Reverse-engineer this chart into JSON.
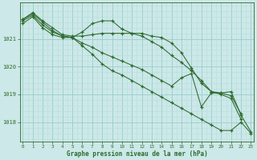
{
  "background_color": "#cce8e8",
  "grid_color_major": "#99cccc",
  "grid_color_minor": "#b8dddd",
  "line_color": "#2d6a2d",
  "marker_color": "#2d6a2d",
  "xlabel": "Graphe pression niveau de la mer (hPa)",
  "xlabel_color": "#2d6a2d",
  "tick_color": "#2d6a2d",
  "ylim": [
    1017.3,
    1022.3
  ],
  "yticks": [
    1018,
    1019,
    1020,
    1021
  ],
  "xticks": [
    0,
    1,
    2,
    3,
    4,
    5,
    6,
    7,
    8,
    9,
    10,
    11,
    12,
    13,
    14,
    15,
    16,
    17,
    18,
    19,
    20,
    21,
    22,
    23
  ],
  "series": [
    [
      1021.7,
      1021.95,
      1021.65,
      1021.4,
      1021.15,
      1021.1,
      1021.1,
      1021.15,
      1021.2,
      1021.2,
      1021.2,
      1021.2,
      1021.2,
      1021.1,
      1021.05,
      1020.85,
      1020.5,
      1019.95,
      1019.4,
      1019.1,
      1019.05,
      1019.1,
      1018.25,
      1017.65
    ],
    [
      1021.7,
      1021.9,
      1021.6,
      1021.3,
      1021.1,
      1021.05,
      1021.25,
      1021.55,
      1021.65,
      1021.65,
      1021.35,
      1021.2,
      1021.1,
      1020.9,
      1020.7,
      1020.4,
      1020.15,
      1019.85,
      1019.5,
      1019.1,
      1019.0,
      1018.85,
      1018.1,
      null
    ],
    [
      1021.65,
      1021.85,
      1021.5,
      1021.25,
      1021.1,
      1021.05,
      1020.85,
      1020.7,
      1020.5,
      1020.35,
      1020.2,
      1020.05,
      1019.9,
      1019.7,
      1019.5,
      1019.3,
      1019.6,
      1019.75,
      1018.55,
      1019.05,
      1019.05,
      1018.95,
      1018.3,
      null
    ],
    [
      1021.55,
      1021.8,
      1021.4,
      1021.15,
      1021.05,
      1021.05,
      1020.75,
      1020.45,
      1020.1,
      1019.85,
      1019.7,
      1019.5,
      1019.3,
      1019.1,
      1018.9,
      1018.7,
      1018.5,
      1018.3,
      1018.1,
      1017.9,
      1017.7,
      1017.7,
      1018.0,
      1017.6
    ]
  ]
}
